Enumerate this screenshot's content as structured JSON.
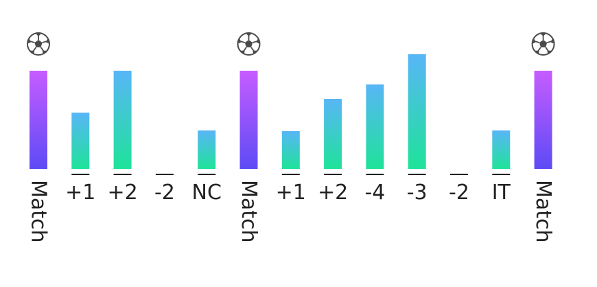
{
  "chart_data": {
    "type": "bar",
    "categories": [
      "Match",
      "+1",
      "+2",
      "-2",
      "NC",
      "Match",
      "+1",
      "+2",
      "-4",
      "-3",
      "-2",
      "IT",
      "Match"
    ],
    "values": [
      143,
      82,
      143,
      0,
      56,
      143,
      55,
      102,
      123,
      167,
      0,
      56,
      143
    ],
    "match_marker_icon": "soccer-ball-icon",
    "colors": {
      "match_top": "#c65cff",
      "match_bottom": "#5d4bf5",
      "bar_top": "#58b6f7",
      "bar_bottom": "#1fe39a",
      "tick_mark": "#222222",
      "label": "#222222"
    }
  }
}
